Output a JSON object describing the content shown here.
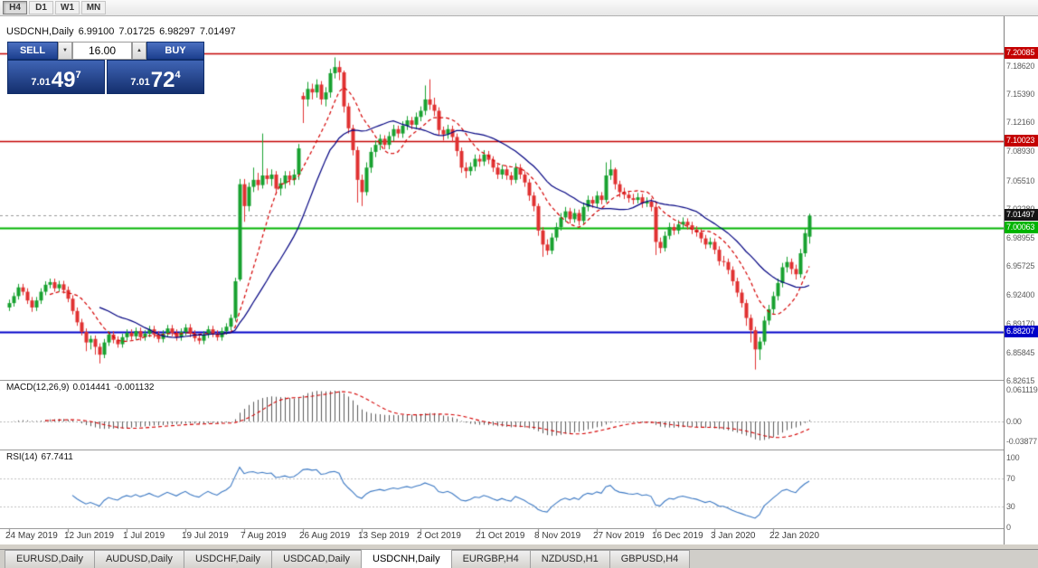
{
  "toolbar": {
    "buttons": [
      {
        "label": "H4",
        "active": true
      },
      {
        "label": "D1",
        "active": false
      },
      {
        "label": "W1",
        "active": false
      },
      {
        "label": "MN",
        "active": false
      }
    ]
  },
  "chart": {
    "title": {
      "symbol": "USDCNH,Daily",
      "open": "6.99100",
      "high": "7.01725",
      "low": "6.98297",
      "close": "7.01497"
    },
    "price_axis_labels": [
      "7.18620",
      "7.15390",
      "7.12160",
      "7.08930",
      "7.05510",
      "7.02280",
      "6.98955",
      "6.95725",
      "6.92400",
      "6.89170",
      "6.85845",
      "6.82615"
    ],
    "levels": [
      {
        "label": "7.20085",
        "value": 7.20085,
        "color": "#c40000",
        "line_width": 1.5
      },
      {
        "label": "7.10023",
        "value": 7.10023,
        "color": "#c40000",
        "line_width": 1.5
      },
      {
        "label": "7.00063",
        "value": 7.00063,
        "color": "#00b400",
        "line_width": 2
      },
      {
        "label": "6.88207",
        "value": 6.88207,
        "color": "#0000c8",
        "line_width": 2
      }
    ],
    "current_price": {
      "label": "7.01497",
      "value": 7.01497,
      "color": "#141414"
    },
    "date_labels": [
      {
        "text": "24 May 2019",
        "bar": 0
      },
      {
        "text": "12 Jun 2019",
        "bar": 13
      },
      {
        "text": "1 Jul 2019",
        "bar": 26
      },
      {
        "text": "19 Jul 2019",
        "bar": 39
      },
      {
        "text": "7 Aug 2019",
        "bar": 52
      },
      {
        "text": "26 Aug 2019",
        "bar": 65
      },
      {
        "text": "13 Sep 2019",
        "bar": 78
      },
      {
        "text": "2 Oct 2019",
        "bar": 91
      },
      {
        "text": "21 Oct 2019",
        "bar": 104
      },
      {
        "text": "8 Nov 2019",
        "bar": 117
      },
      {
        "text": "27 Nov 2019",
        "bar": 130
      },
      {
        "text": "16 Dec 2019",
        "bar": 143
      },
      {
        "text": "3 Jan 2020",
        "bar": 156
      },
      {
        "text": "22 Jan 2020",
        "bar": 169
      }
    ],
    "colors": {
      "candle_up": "#17a12f",
      "candle_down": "#e03131",
      "background": "#ffffff"
    }
  },
  "chart_data": {
    "type": "candlestick",
    "symbol": "USDCNH",
    "timeframe": "Daily",
    "overlays": [
      {
        "name": "ma-fast",
        "type": "sma",
        "period": 10,
        "color": "#d40000",
        "dash": true
      },
      {
        "name": "ma-slow",
        "type": "sma",
        "period": 21,
        "color": "#000080",
        "dash": false
      }
    ],
    "candles": [
      [
        6.91,
        6.919,
        6.906,
        6.915
      ],
      [
        6.915,
        6.927,
        6.911,
        6.923
      ],
      [
        6.923,
        6.937,
        6.919,
        6.933
      ],
      [
        6.933,
        6.937,
        6.924,
        6.928
      ],
      [
        6.928,
        6.932,
        6.914,
        6.918
      ],
      [
        6.918,
        6.922,
        6.905,
        6.91
      ],
      [
        6.91,
        6.922,
        6.906,
        6.918
      ],
      [
        6.918,
        6.932,
        6.914,
        6.928
      ],
      [
        6.928,
        6.94,
        6.924,
        6.936
      ],
      [
        6.936,
        6.943,
        6.932,
        6.939
      ],
      [
        6.939,
        6.943,
        6.928,
        6.932
      ],
      [
        6.932,
        6.9405,
        6.928,
        6.9365
      ],
      [
        6.9365,
        6.9405,
        6.926,
        6.93
      ],
      [
        6.93,
        6.934,
        6.916,
        6.92
      ],
      [
        6.92,
        6.924,
        6.902,
        6.906
      ],
      [
        6.906,
        6.91,
        6.889,
        6.893
      ],
      [
        6.893,
        6.897,
        6.878,
        6.882
      ],
      [
        6.882,
        6.886,
        6.86,
        6.87
      ],
      [
        6.87,
        6.878,
        6.862,
        6.874
      ],
      [
        6.874,
        6.878,
        6.856,
        6.865
      ],
      [
        6.865,
        6.869,
        6.846,
        6.856
      ],
      [
        6.856,
        6.874,
        6.852,
        6.87
      ],
      [
        6.87,
        6.883,
        6.866,
        6.879
      ],
      [
        6.879,
        6.883,
        6.869,
        6.873
      ],
      [
        6.873,
        6.877,
        6.864,
        6.868
      ],
      [
        6.868,
        6.88,
        6.864,
        6.876
      ],
      [
        6.876,
        6.885,
        6.872,
        6.881
      ],
      [
        6.881,
        6.885,
        6.873,
        6.877
      ],
      [
        6.877,
        6.887,
        6.873,
        6.883
      ],
      [
        6.883,
        6.887,
        6.872,
        6.876
      ],
      [
        6.876,
        6.884,
        6.872,
        6.88
      ],
      [
        6.88,
        6.889,
        6.876,
        6.885
      ],
      [
        6.885,
        6.889,
        6.875,
        6.879
      ],
      [
        6.879,
        6.883,
        6.87,
        6.874
      ],
      [
        6.874,
        6.884,
        6.87,
        6.88
      ],
      [
        6.88,
        6.89,
        6.876,
        6.886
      ],
      [
        6.886,
        6.89,
        6.877,
        6.881
      ],
      [
        6.881,
        6.885,
        6.872,
        6.876
      ],
      [
        6.876,
        6.886,
        6.872,
        6.882
      ],
      [
        6.882,
        6.891,
        6.878,
        6.887
      ],
      [
        6.887,
        6.891,
        6.876,
        6.88
      ],
      [
        6.88,
        6.884,
        6.871,
        6.875
      ],
      [
        6.875,
        6.879,
        6.868,
        6.872
      ],
      [
        6.872,
        6.883,
        6.868,
        6.879
      ],
      [
        6.879,
        6.889,
        6.875,
        6.885
      ],
      [
        6.885,
        6.889,
        6.876,
        6.88
      ],
      [
        6.88,
        6.884,
        6.872,
        6.876
      ],
      [
        6.876,
        6.887,
        6.872,
        6.883
      ],
      [
        6.883,
        6.892,
        6.879,
        6.888
      ],
      [
        6.888,
        6.902,
        6.884,
        6.898
      ],
      [
        6.898,
        6.944,
        6.894,
        6.94
      ],
      [
        6.942,
        7.057,
        6.94,
        7.051
      ],
      [
        7.051,
        7.057,
        7.008,
        7.026
      ],
      [
        7.026,
        7.053,
        7.02,
        7.048
      ],
      [
        7.048,
        7.07,
        7.042,
        7.056
      ],
      [
        7.056,
        7.064,
        7.044,
        7.05
      ],
      [
        7.05,
        7.109,
        7.046,
        7.061
      ],
      [
        7.061,
        7.069,
        7.051,
        7.057
      ],
      [
        7.057,
        7.068,
        7.049,
        7.062
      ],
      [
        7.062,
        7.066,
        7.04,
        7.046
      ],
      [
        7.046,
        7.058,
        7.038,
        7.052
      ],
      [
        7.052,
        7.066,
        7.046,
        7.061
      ],
      [
        7.061,
        7.066,
        7.05,
        7.056
      ],
      [
        7.056,
        7.068,
        7.05,
        7.062
      ],
      [
        7.062,
        7.097,
        7.056,
        7.092
      ],
      [
        7.152,
        7.156,
        7.121,
        7.148
      ],
      [
        7.148,
        7.168,
        7.14,
        7.16
      ],
      [
        7.16,
        7.166,
        7.148,
        7.156
      ],
      [
        7.156,
        7.171,
        7.15,
        7.165
      ],
      [
        7.165,
        7.169,
        7.142,
        7.148
      ],
      [
        7.148,
        7.162,
        7.14,
        7.156
      ],
      [
        7.156,
        7.183,
        7.15,
        7.178
      ],
      [
        7.178,
        7.196,
        7.172,
        7.185
      ],
      [
        7.185,
        7.192,
        7.17,
        7.179
      ],
      [
        7.179,
        7.181,
        7.133,
        7.14
      ],
      [
        7.14,
        7.144,
        7.109,
        7.115
      ],
      [
        7.115,
        7.119,
        7.084,
        7.09
      ],
      [
        7.09,
        7.094,
        7.03,
        7.056
      ],
      [
        7.056,
        7.062,
        7.026,
        7.042
      ],
      [
        7.042,
        7.076,
        7.038,
        7.07
      ],
      [
        7.07,
        7.093,
        7.064,
        7.088
      ],
      [
        7.088,
        7.101,
        7.082,
        7.096
      ],
      [
        7.096,
        7.108,
        7.09,
        7.103
      ],
      [
        7.103,
        7.107,
        7.091,
        7.096
      ],
      [
        7.096,
        7.111,
        7.091,
        7.106
      ],
      [
        7.106,
        7.119,
        7.1,
        7.114
      ],
      [
        7.114,
        7.118,
        7.104,
        7.109
      ],
      [
        7.109,
        7.123,
        7.104,
        7.118
      ],
      [
        7.118,
        7.129,
        7.113,
        7.124
      ],
      [
        7.124,
        7.128,
        7.114,
        7.119
      ],
      [
        7.119,
        7.133,
        7.114,
        7.128
      ],
      [
        7.128,
        7.14,
        7.123,
        7.135
      ],
      [
        7.135,
        7.164,
        7.13,
        7.148
      ],
      [
        7.148,
        7.171,
        7.136,
        7.142
      ],
      [
        7.142,
        7.15,
        7.129,
        7.135
      ],
      [
        7.135,
        7.139,
        7.107,
        7.113
      ],
      [
        7.113,
        7.117,
        7.101,
        7.108
      ],
      [
        7.108,
        7.119,
        7.103,
        7.114
      ],
      [
        7.114,
        7.118,
        7.099,
        7.105
      ],
      [
        7.105,
        7.109,
        7.083,
        7.089
      ],
      [
        7.089,
        7.093,
        7.064,
        7.07
      ],
      [
        7.07,
        7.076,
        7.058,
        7.066
      ],
      [
        7.066,
        7.076,
        7.061,
        7.071
      ],
      [
        7.071,
        7.085,
        7.066,
        7.08
      ],
      [
        7.08,
        7.085,
        7.071,
        7.077
      ],
      [
        7.077,
        7.09,
        7.072,
        7.085
      ],
      [
        7.085,
        7.089,
        7.074,
        7.079
      ],
      [
        7.079,
        7.083,
        7.065,
        7.07
      ],
      [
        7.07,
        7.074,
        7.057,
        7.062
      ],
      [
        7.062,
        7.073,
        7.057,
        7.068
      ],
      [
        7.068,
        7.072,
        7.056,
        7.061
      ],
      [
        7.061,
        7.065,
        7.05,
        7.056
      ],
      [
        7.056,
        7.075,
        7.052,
        7.07
      ],
      [
        7.07,
        7.074,
        7.057,
        7.062
      ],
      [
        7.062,
        7.066,
        7.048,
        7.053
      ],
      [
        7.053,
        7.057,
        7.032,
        7.038
      ],
      [
        7.038,
        7.042,
        7.02,
        7.026
      ],
      [
        7.026,
        7.029,
        6.992,
        6.998
      ],
      [
        6.998,
        7.002,
        6.968,
        6.982
      ],
      [
        6.982,
        6.988,
        6.97,
        6.975
      ],
      [
        6.975,
        6.995,
        6.971,
        6.99
      ],
      [
        6.99,
        7.007,
        6.986,
        7.002
      ],
      [
        7.002,
        7.018,
        6.998,
        7.013
      ],
      [
        7.013,
        7.025,
        7.008,
        7.02
      ],
      [
        7.02,
        7.024,
        7.006,
        7.011
      ],
      [
        7.011,
        7.023,
        7.007,
        7.018
      ],
      [
        7.018,
        7.022,
        7.004,
        7.009
      ],
      [
        7.009,
        7.03,
        7.005,
        7.025
      ],
      [
        7.025,
        7.038,
        7.02,
        7.033
      ],
      [
        7.033,
        7.037,
        7.024,
        7.029
      ],
      [
        7.029,
        7.043,
        7.024,
        7.038
      ],
      [
        7.038,
        7.042,
        7.028,
        7.033
      ],
      [
        7.033,
        7.076,
        7.03,
        7.061
      ],
      [
        7.061,
        7.079,
        7.056,
        7.068
      ],
      [
        7.068,
        7.07,
        7.045,
        7.051
      ],
      [
        7.051,
        7.055,
        7.036,
        7.042
      ],
      [
        7.042,
        7.047,
        7.034,
        7.039
      ],
      [
        7.039,
        7.043,
        7.03,
        7.035
      ],
      [
        7.035,
        7.04,
        7.028,
        7.033
      ],
      [
        7.033,
        7.041,
        7.029,
        7.036
      ],
      [
        7.036,
        7.04,
        7.024,
        7.029
      ],
      [
        7.029,
        7.036,
        7.025,
        7.031
      ],
      [
        7.031,
        7.035,
        7.02,
        7.025
      ],
      [
        7.025,
        7.028,
        6.97,
        6.985
      ],
      [
        6.985,
        6.99,
        6.972,
        6.978
      ],
      [
        6.978,
        6.997,
        6.974,
        6.992
      ],
      [
        6.992,
        7.007,
        6.988,
        7.002
      ],
      [
        7.002,
        7.006,
        6.993,
        6.998
      ],
      [
        6.998,
        7.01,
        6.994,
        7.005
      ],
      [
        7.005,
        7.013,
        7.001,
        7.008
      ],
      [
        7.008,
        7.012,
        6.999,
        7.004
      ],
      [
        7.004,
        7.008,
        6.994,
        6.999
      ],
      [
        6.999,
        7.003,
        6.991,
        6.996
      ],
      [
        6.996,
        7.0,
        6.984,
        6.989
      ],
      [
        6.989,
        6.993,
        6.977,
        6.982
      ],
      [
        6.982,
        6.99,
        6.978,
        6.985
      ],
      [
        6.985,
        6.989,
        6.971,
        6.976
      ],
      [
        6.976,
        6.98,
        6.958,
        6.963
      ],
      [
        6.963,
        6.969,
        6.957,
        6.962
      ],
      [
        6.962,
        6.966,
        6.948,
        6.953
      ],
      [
        6.953,
        6.957,
        6.935,
        6.94
      ],
      [
        6.94,
        6.944,
        6.922,
        6.927
      ],
      [
        6.927,
        6.931,
        6.91,
        6.915
      ],
      [
        6.915,
        6.919,
        6.889,
        6.898
      ],
      [
        6.898,
        6.902,
        6.87,
        6.884
      ],
      [
        6.884,
        6.888,
        6.839,
        6.862
      ],
      [
        6.862,
        6.876,
        6.85,
        6.871
      ],
      [
        6.871,
        6.9,
        6.867,
        6.895
      ],
      [
        6.895,
        6.913,
        6.89,
        6.908
      ],
      [
        6.908,
        6.928,
        6.903,
        6.923
      ],
      [
        6.923,
        6.943,
        6.918,
        6.938
      ],
      [
        6.938,
        6.961,
        6.933,
        6.956
      ],
      [
        6.956,
        6.968,
        6.95,
        6.962
      ],
      [
        6.962,
        6.966,
        6.948,
        6.954
      ],
      [
        6.954,
        6.959,
        6.942,
        6.948
      ],
      [
        6.948,
        6.977,
        6.944,
        6.972
      ],
      [
        6.972,
        7.0,
        6.968,
        6.995
      ],
      [
        6.991,
        7.0173,
        6.983,
        7.015
      ]
    ]
  },
  "macd": {
    "label": "MACD(12,26,9)",
    "fast": 12,
    "slow": 26,
    "signal": 9,
    "value_main": "0.014441",
    "value_signal": "-0.001132",
    "axis_labels": [
      "0.061119",
      "0.00",
      "-0.03877"
    ],
    "histogram_color": "#5a5a5a",
    "signal_color": "#d40000"
  },
  "rsi": {
    "label": "RSI(14)",
    "period": 14,
    "value": "67.7411",
    "axis_labels": [
      "100",
      "70",
      "30",
      "0"
    ],
    "levels": [
      70,
      30
    ],
    "color": "#3b78c3"
  },
  "trade_panel": {
    "sell_label": "SELL",
    "buy_label": "BUY",
    "volume": "16.00",
    "sell_price": {
      "main": "7.01",
      "big": "49",
      "sup": "7"
    },
    "buy_price": {
      "main": "7.01",
      "big": "72",
      "sup": "4"
    }
  },
  "tabs": [
    {
      "label": "EURUSD,Daily",
      "active": false
    },
    {
      "label": "AUDUSD,Daily",
      "active": false
    },
    {
      "label": "USDCHF,Daily",
      "active": false
    },
    {
      "label": "USDCAD,Daily",
      "active": false
    },
    {
      "label": "USDCNH,Daily",
      "active": true
    },
    {
      "label": "EURGBP,H4",
      "active": false
    },
    {
      "label": "NZDUSD,H1",
      "active": false
    },
    {
      "label": "GBPUSD,H4",
      "active": false
    }
  ]
}
